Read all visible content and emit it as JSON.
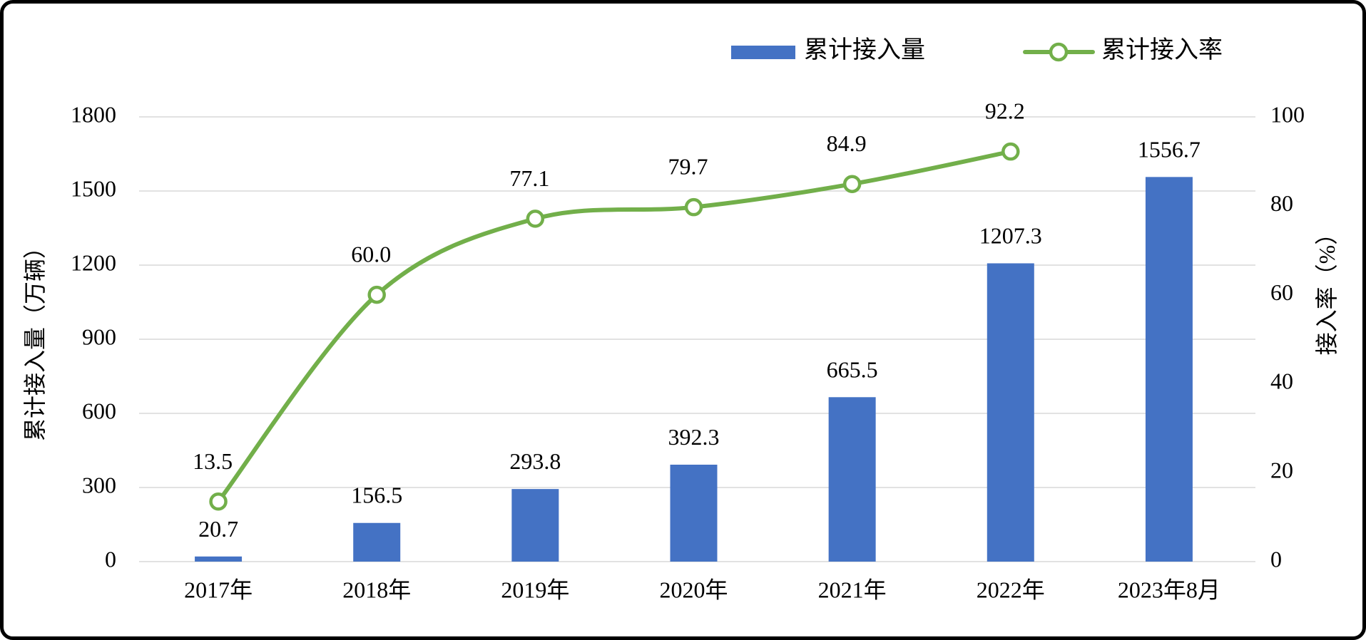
{
  "frame": {
    "background": "#ffffff",
    "border_color": "#000000"
  },
  "legend": {
    "position": "top",
    "items": [
      {
        "label": "累计接入量",
        "swatch": "bar-swatch",
        "color": "#4472C4"
      },
      {
        "label": "累计接入率",
        "swatch": "line-marker-swatch",
        "color": "#72AF4A"
      }
    ]
  },
  "chart_data": {
    "type": "combo-bar-line",
    "categories": [
      "2017年",
      "2018年",
      "2019年",
      "2020年",
      "2021年",
      "2022年",
      "2023年8月"
    ],
    "series": [
      {
        "name": "累计接入量",
        "type": "bar",
        "axis": "left",
        "color": "#4472C4",
        "values": [
          20.7,
          156.5,
          293.8,
          392.3,
          665.5,
          1207.3,
          1556.7
        ],
        "value_labels": [
          "20.7",
          "156.5",
          "293.8",
          "392.3",
          "665.5",
          "1207.3",
          "1556.7"
        ]
      },
      {
        "name": "累计接入率",
        "type": "line",
        "axis": "right",
        "color": "#72AF4A",
        "marker": "hollow-circle",
        "values": [
          13.5,
          60.0,
          77.1,
          79.7,
          84.9,
          92.2
        ],
        "value_labels": [
          "13.5",
          "60.0",
          "77.1",
          "79.7",
          "84.9",
          "92.2"
        ]
      }
    ],
    "left_axis": {
      "title": "累计接入量（万辆）",
      "min": 0,
      "max": 1800,
      "tick_step": 300,
      "tick_labels": [
        "0",
        "300",
        "600",
        "900",
        "1200",
        "1500",
        "1800"
      ]
    },
    "right_axis": {
      "title": "接入率（%）",
      "min": 0,
      "max": 100,
      "tick_step": 20,
      "tick_labels": [
        "0",
        "20",
        "40",
        "60",
        "80",
        "100"
      ]
    },
    "grid": true,
    "gridline_color": "#D9D9D9",
    "text_color": "#000000",
    "legend_position": "top"
  }
}
